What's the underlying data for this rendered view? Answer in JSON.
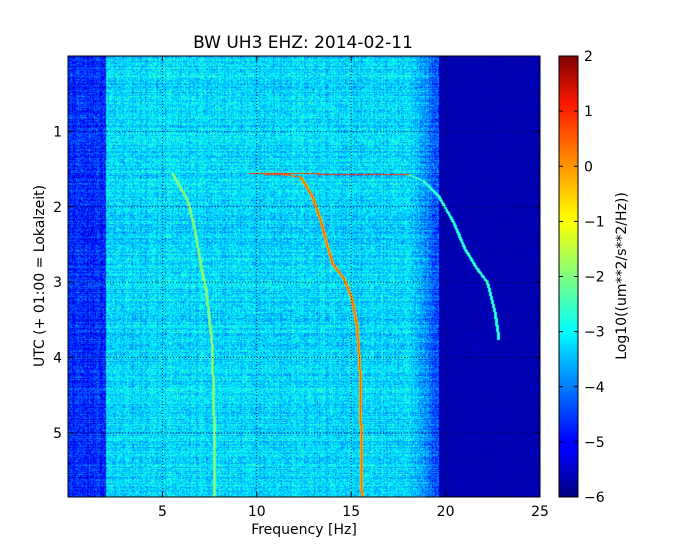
{
  "chart_data": {
    "type": "heatmap",
    "title": "BW UH3 EHZ: 2014-02-11",
    "xlabel": "Frequency [Hz]",
    "ylabel": "UTC (+ 01:00 = Lokalzeit)",
    "colorbar_label": "Log10((um**2/s**2/Hz))",
    "xlim": [
      0,
      25
    ],
    "ylim": [
      5.85,
      0
    ],
    "clim": [
      -6,
      2
    ],
    "x_ticks": [
      5,
      10,
      15,
      20,
      25
    ],
    "y_ticks": [
      1,
      2,
      3,
      4,
      5
    ],
    "colorbar_ticks": [
      2,
      1,
      0,
      -1,
      -2,
      -3,
      -4,
      -5,
      -6
    ],
    "grid": true,
    "colormap": "jet",
    "background_level": -3.3,
    "dead_band": {
      "x_from": 19.6,
      "x_to": 25,
      "level": -5.6
    },
    "features": [
      {
        "name": "main tremor line",
        "level": 0.3,
        "points": [
          [
            9.6,
            1.55
          ],
          [
            11.5,
            1.57
          ],
          [
            12.3,
            1.6
          ],
          [
            12.9,
            1.85
          ],
          [
            13.4,
            2.2
          ],
          [
            13.7,
            2.5
          ],
          [
            14.0,
            2.75
          ],
          [
            14.6,
            2.95
          ],
          [
            15.0,
            3.2
          ],
          [
            15.3,
            3.6
          ],
          [
            15.45,
            4.2
          ],
          [
            15.5,
            5.0
          ],
          [
            15.55,
            5.85
          ]
        ]
      },
      {
        "name": "horizontal onset segment",
        "level": 0.6,
        "points": [
          [
            9.6,
            1.55
          ],
          [
            18.0,
            1.57
          ]
        ]
      },
      {
        "name": "upper harmonic",
        "level": -2.3,
        "points": [
          [
            18.0,
            1.57
          ],
          [
            18.8,
            1.65
          ],
          [
            19.6,
            1.85
          ],
          [
            20.4,
            2.2
          ],
          [
            21.0,
            2.55
          ],
          [
            21.6,
            2.8
          ],
          [
            22.2,
            3.0
          ],
          [
            22.6,
            3.4
          ],
          [
            22.8,
            3.75
          ]
        ]
      },
      {
        "name": "lower harmonic",
        "level": -1.6,
        "points": [
          [
            5.5,
            1.55
          ],
          [
            6.3,
            1.9
          ],
          [
            6.7,
            2.3
          ],
          [
            7.0,
            2.75
          ],
          [
            7.3,
            3.1
          ],
          [
            7.6,
            3.8
          ],
          [
            7.7,
            4.6
          ],
          [
            7.75,
            5.85
          ]
        ]
      }
    ]
  }
}
